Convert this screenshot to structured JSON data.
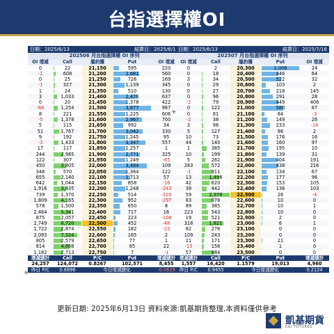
{
  "title": "台指選擇權OI",
  "left": {
    "date_label": "日期：2025/6/13",
    "settle_label": "結算日：2025/6/18",
    "series_label": "202506 月台指選擇權 OI 序列",
    "headers": [
      "OI 增減",
      "Call",
      "履約價",
      "Put",
      "OI 增減"
    ],
    "rows": [
      [
        "0",
        "22",
        "21,150",
        "595",
        "220"
      ],
      [
        "-1",
        "608",
        "21,200",
        "2,681",
        "560"
      ],
      [
        "0",
        "25",
        "21,250",
        "726",
        "169"
      ],
      [
        "-1",
        "327",
        "21,300",
        "1,139",
        "345"
      ],
      [
        "1",
        "24",
        "21,350",
        "510",
        "130"
      ],
      [
        "3",
        "1,033",
        "21,400",
        "2,476",
        "637"
      ],
      [
        "0",
        "20",
        "21,450",
        "1,378",
        "422"
      ],
      [
        "-66",
        "1,254",
        "21,500",
        "3,877",
        "967"
      ],
      [
        "8",
        "221",
        "21,550",
        "1,225",
        "606"
      ],
      [
        "-5",
        "1,378",
        "21,600",
        "2,967",
        "700"
      ],
      [
        "5",
        "115",
        "21,650",
        "992",
        "34"
      ],
      [
        "51",
        "1,767",
        "21,700",
        "3,042",
        "330"
      ],
      [
        "9",
        "192",
        "21,750",
        "1,245",
        "95"
      ],
      [
        "-3",
        "1,433",
        "21,800",
        "3,347",
        "557"
      ],
      [
        "17",
        "117",
        "21,850",
        "1,257",
        "1"
      ],
      [
        "244",
        "2,985",
        "21,900",
        "2,771",
        "325"
      ],
      [
        "122",
        "307",
        "21,950",
        "1,249",
        "-65"
      ],
      [
        "450",
        "3,805",
        "22,000",
        "3,484",
        "109"
      ],
      [
        "348",
        "570",
        "22,050",
        "1,364",
        "122"
      ],
      [
        "655",
        "2,140",
        "22,100",
        "1,713",
        "57"
      ],
      [
        "642",
        "1,044",
        "22,150",
        "858",
        "-16"
      ],
      [
        "1,916",
        "3,835",
        "22,200",
        "1,248",
        "-243"
      ],
      [
        "739",
        "1,370",
        "22,250",
        "514",
        "-320"
      ],
      [
        "1,809",
        "4,165",
        "22,300",
        "952",
        "-297"
      ],
      [
        "578",
        "1,500",
        "22,350",
        "650",
        "8"
      ],
      [
        "2,464",
        "5,341",
        "22,400",
        "717",
        "16"
      ],
      [
        "875",
        "2,057",
        "22,450",
        "223",
        "-108"
      ],
      [
        "2,749",
        "8,720",
        "22,500",
        "452",
        "-48"
      ],
      [
        "1,722",
        "2,874",
        "22,550",
        "182",
        "-23"
      ],
      [
        "2,093",
        "7,324",
        "22,600",
        "165",
        "2"
      ],
      [
        "805",
        "2,579",
        "22,650",
        "77",
        "1"
      ],
      [
        "814",
        "4,868",
        "22,700",
        "85",
        "22"
      ],
      [
        "1,182",
        "2,713",
        "22,750",
        "7",
        "-1"
      ]
    ],
    "totals_headers": [
      "增減總計",
      "Call",
      "P/C",
      "Put",
      "增減總計"
    ],
    "totals": [
      "24,257",
      "124,072",
      "0.8267",
      "102,571",
      "8,455"
    ],
    "pc_row": [
      "昨日 P/C",
      "0.8896",
      "今日增減變化",
      "-0.0629"
    ]
  },
  "right": {
    "date_label": "日期：2025/6/13",
    "settle_label": "結算日：2025/7/16",
    "series_label": "202507 月台指選擇權 OI 序列",
    "headers": [
      "OI 增減",
      "Call",
      "履約價",
      "Put",
      "OI 增減"
    ],
    "rows": [
      [
        "0",
        "2",
        "20,300",
        "1,006",
        "24"
      ],
      [
        "0",
        "18",
        "20,400",
        "446",
        "64"
      ],
      [
        "3",
        "34",
        "20,500",
        "522",
        "32"
      ],
      [
        "0",
        "29",
        "20,600",
        "103",
        "2"
      ],
      [
        "0",
        "27",
        "20,700",
        "218",
        "145"
      ],
      [
        "0",
        "96",
        "20,800",
        "291",
        "28"
      ],
      [
        "-2",
        "79",
        "20,900",
        "449",
        "406"
      ],
      [
        "0",
        "122",
        "21,000",
        "580",
        "67"
      ],
      [
        "0",
        "81",
        "21,100",
        "84",
        "-3"
      ],
      [
        "-2",
        "38",
        "21,200",
        "149",
        "26"
      ],
      [
        "3",
        "98",
        "21,300",
        "233",
        "-14"
      ],
      [
        "5",
        "127",
        "21,400",
        "96",
        "2"
      ],
      [
        "10",
        "73",
        "21,500",
        "176",
        "16"
      ],
      [
        "44",
        "140",
        "21,600",
        "160",
        "97"
      ],
      [
        "1",
        "385",
        "21,700",
        "195",
        "10"
      ],
      [
        "10",
        "199",
        "21,800",
        "139",
        "31"
      ],
      [
        "5",
        "282",
        "21,900",
        "404",
        "191"
      ],
      [
        "283",
        "572",
        "22,000",
        "438",
        "216"
      ],
      [
        "-1",
        "911",
        "22,100",
        "134",
        "67"
      ],
      [
        "13",
        "1,496",
        "22,200",
        "177",
        "96"
      ],
      [
        "42",
        "620",
        "22,300",
        "153",
        "105"
      ],
      [
        "39",
        "442",
        "22,400",
        "136",
        "103"
      ],
      [
        "59",
        "2,379",
        "22,500",
        "26",
        "-4"
      ],
      [
        "83",
        "878",
        "22,600",
        "10",
        "0"
      ],
      [
        "89",
        "385",
        "22,700",
        "10",
        "1"
      ],
      [
        "223",
        "543",
        "22,800",
        "10",
        "0"
      ],
      [
        "19",
        "521",
        "22,900",
        "2",
        "0"
      ],
      [
        "318",
        "1,821",
        "23,000",
        "6",
        "1"
      ],
      [
        "82",
        "276",
        "23,100",
        "0",
        "0"
      ],
      [
        "109",
        "243",
        "23,200",
        "0",
        "0"
      ],
      [
        "21",
        "171",
        "23,300",
        "21",
        "0"
      ],
      [
        "-13",
        "156",
        "23,400",
        "1",
        "0"
      ],
      [
        "57",
        "984",
        "23,500",
        "0",
        "0"
      ]
    ],
    "totals_headers": [
      "增減總計",
      "Call",
      "P/C",
      "Put",
      "增減總計"
    ],
    "totals": [
      "1,557",
      "16,420",
      "1.1579",
      "19,013",
      "4,960"
    ],
    "pc_row": [
      "昨日 P/C",
      "0.9455",
      "今日增減變化",
      "0.2124"
    ]
  },
  "footer": "更新日期: 2025年6月13日  資料來源:凱基期貨整理,本資料僅供參考",
  "logo": {
    "cn": "凱基期貨",
    "en": "KGI FUTURES"
  },
  "colors": {
    "navy": "#1d3a6e",
    "gold": "#c9a646",
    "call_bar": "#7fd26b",
    "put_bar": "#6fb4e6",
    "neg": "#d6281e",
    "atm": "#f3c22b"
  }
}
